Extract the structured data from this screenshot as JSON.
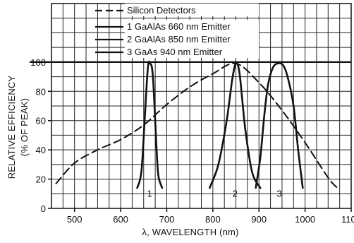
{
  "chart_data": {
    "type": "line",
    "xlabel": "λ, WAVELENGTH (nm)",
    "ylabel_line1": "RELATIVE EFFICIENCY",
    "ylabel_line2": "(% OF PEAK)",
    "xlim": [
      450,
      1100
    ],
    "ylim": [
      0,
      140
    ],
    "x_ticks": [
      500,
      600,
      700,
      800,
      900,
      1000,
      1100
    ],
    "y_ticks": [
      0,
      20,
      40,
      60,
      80,
      100
    ],
    "grid": true,
    "legend_position": "top-left",
    "reference_line_y": 100,
    "series": [
      {
        "name": "Silicon Detectors",
        "style": "dashed",
        "x": [
          460,
          500,
          550,
          600,
          650,
          700,
          750,
          800,
          850,
          900,
          950,
          1000,
          1050,
          1070
        ],
        "y": [
          17,
          31,
          40,
          47,
          57,
          71,
          83,
          92,
          99,
          86,
          67,
          45,
          21,
          14
        ]
      },
      {
        "name": "1 GaAlAs 660 nm Emitter",
        "label": "1",
        "style": "solid",
        "x": [
          636,
          645,
          652,
          659,
          664,
          670,
          678,
          682,
          690
        ],
        "y": [
          14,
          25,
          60,
          96,
          99,
          90,
          40,
          22,
          14
        ]
      },
      {
        "name": "2 GaAlAs 850 nm Emitter",
        "label": "2",
        "style": "solid",
        "x": [
          793,
          812,
          830,
          842,
          850,
          858,
          870,
          885,
          903
        ],
        "y": [
          14,
          30,
          60,
          88,
          99,
          92,
          55,
          25,
          14
        ]
      },
      {
        "name": "3 GaAs 940 nm Emitter",
        "label": "3",
        "style": "solid",
        "x": [
          893,
          903,
          912,
          920,
          930,
          940,
          952,
          962,
          975,
          985,
          995
        ],
        "y": [
          14,
          35,
          65,
          85,
          96,
          99,
          98,
          90,
          70,
          40,
          14
        ]
      }
    ]
  }
}
